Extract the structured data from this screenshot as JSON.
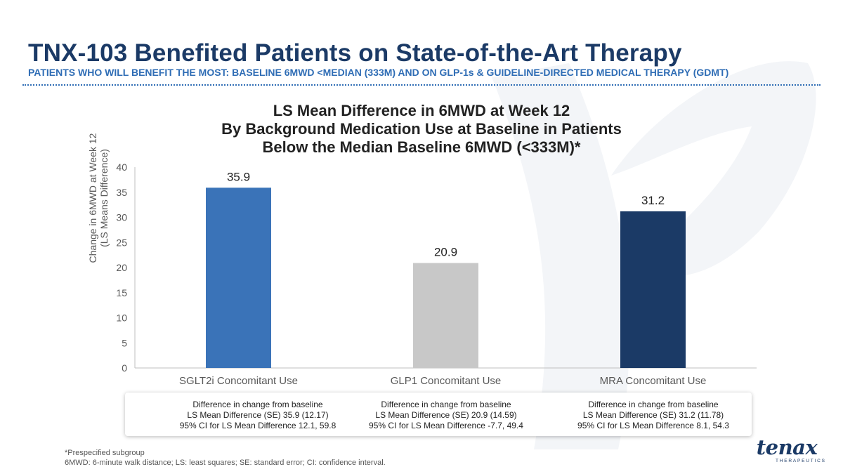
{
  "header": {
    "title": "TNX-103 Benefited Patients on State-of-the-Art Therapy",
    "subtitle": "PATIENTS WHO WILL BENEFIT THE MOST:  BASELINE 6MWD <MEDIAN (333M) AND ON GLP-1s & GUIDELINE-DIRECTED MEDICAL THERAPY (GDMT)"
  },
  "chart_data": {
    "type": "bar",
    "title_lines": [
      "LS Mean Difference in 6MWD at Week 12",
      "By Background Medication Use at Baseline in Patients",
      "Below the Median Baseline 6MWD (<333M)*"
    ],
    "ylabel_lines": [
      "Change in 6MWD at Week 12",
      "(LS Means Difference)"
    ],
    "xlabel": "",
    "ylim": [
      0,
      40
    ],
    "yticks": [
      0,
      5,
      10,
      15,
      20,
      25,
      30,
      35,
      40
    ],
    "categories": [
      "SGLT2i Concomitant Use",
      "GLP1  Concomitant Use",
      "MRA Concomitant Use"
    ],
    "values": [
      35.9,
      20.9,
      31.2
    ],
    "data_labels": [
      "35.9",
      "20.9",
      "31.2"
    ],
    "bar_colors": [
      "#3a73b8",
      "#c8c8c8",
      "#1b3a66"
    ],
    "grid": false,
    "legend": "none"
  },
  "notes": [
    {
      "line1": "Difference in change from baseline",
      "line2": "LS Mean Difference (SE) 35.9 (12.17)",
      "line3": "95% CI for LS Mean Difference 12.1, 59.8"
    },
    {
      "line1": "Difference in change from baseline",
      "line2": "LS Mean Difference (SE) 20.9 (14.59)",
      "line3": "95% CI for LS Mean Difference -7.7, 49.4"
    },
    {
      "line1": "Difference in change from baseline",
      "line2": "LS Mean Difference (SE) 31.2 (11.78)",
      "line3": "95% CI for LS Mean Difference 8.1, 54.3"
    }
  ],
  "footnotes": {
    "line1": "*Prespecified subgroup",
    "line2": "6MWD: 6-minute walk distance; LS: least squares; SE: standard error; CI: confidence interval."
  },
  "logo": {
    "word": "tenax",
    "sub": "THERAPEUTICS"
  },
  "colors": {
    "title": "#1b3a66",
    "subtitle": "#2f6db5",
    "axis": "#bfbfbf",
    "tick_text": "#595959"
  }
}
